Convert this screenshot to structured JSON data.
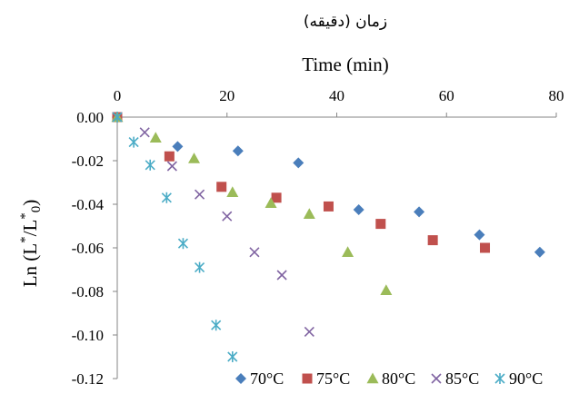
{
  "chart_data": {
    "type": "scatter",
    "title": "زمان (دقیقه)",
    "xlabel": "Time (min)",
    "ylabel_main": "Ln (L",
    "ylabel_star1": "*",
    "ylabel_mid": "/L",
    "ylabel_star2": "*",
    "ylabel_sub": "0",
    "ylabel_close": ")",
    "xlim": [
      0,
      80
    ],
    "ylim": [
      -0.12,
      0
    ],
    "x_ticks": [
      0,
      20,
      40,
      60,
      80
    ],
    "x_tick_labels": [
      "0",
      "20",
      "40",
      "60",
      "80"
    ],
    "y_ticks": [
      0,
      -0.02,
      -0.04,
      -0.06,
      -0.08,
      -0.1,
      -0.12
    ],
    "y_tick_labels": [
      "0.00",
      "-0.02",
      "-0.04",
      "-0.06",
      "-0.08",
      "-0.10",
      "-0.12"
    ],
    "x_axis_position": "top",
    "grid": false,
    "legend_position": "bottom-right",
    "series": [
      {
        "name": "70°C",
        "marker": "diamond",
        "color": "#4a7ebb",
        "points": [
          [
            0,
            0.0
          ],
          [
            11,
            -0.0135
          ],
          [
            22,
            -0.0155
          ],
          [
            33,
            -0.021
          ],
          [
            44,
            -0.0425
          ],
          [
            55,
            -0.0435
          ],
          [
            66,
            -0.054
          ],
          [
            77,
            -0.062
          ]
        ]
      },
      {
        "name": "75°C",
        "marker": "square",
        "color": "#c0504d",
        "points": [
          [
            0,
            0.0
          ],
          [
            9.5,
            -0.018
          ],
          [
            19,
            -0.032
          ],
          [
            29,
            -0.037
          ],
          [
            38.5,
            -0.041
          ],
          [
            48,
            -0.049
          ],
          [
            57.5,
            -0.0565
          ],
          [
            67,
            -0.06
          ]
        ]
      },
      {
        "name": "80°C",
        "marker": "triangle",
        "color": "#9bbb59",
        "points": [
          [
            0,
            0.0
          ],
          [
            7,
            -0.0095
          ],
          [
            14,
            -0.019
          ],
          [
            21,
            -0.0345
          ],
          [
            28,
            -0.0395
          ],
          [
            35,
            -0.0445
          ],
          [
            42,
            -0.062
          ],
          [
            49,
            -0.0795
          ]
        ]
      },
      {
        "name": "85°C",
        "marker": "x",
        "color": "#8064a2",
        "points": [
          [
            0,
            0.0
          ],
          [
            5,
            -0.007
          ],
          [
            10,
            -0.0225
          ],
          [
            15,
            -0.0355
          ],
          [
            20,
            -0.0455
          ],
          [
            25,
            -0.062
          ],
          [
            30,
            -0.0725
          ],
          [
            35,
            -0.0985
          ]
        ]
      },
      {
        "name": "90°C",
        "marker": "asterisk",
        "color": "#4bacc6",
        "points": [
          [
            0,
            0.0
          ],
          [
            3,
            -0.0115
          ],
          [
            6,
            -0.022
          ],
          [
            9,
            -0.037
          ],
          [
            12,
            -0.058
          ],
          [
            15,
            -0.069
          ],
          [
            18,
            -0.0955
          ],
          [
            21,
            -0.11
          ]
        ]
      }
    ]
  }
}
